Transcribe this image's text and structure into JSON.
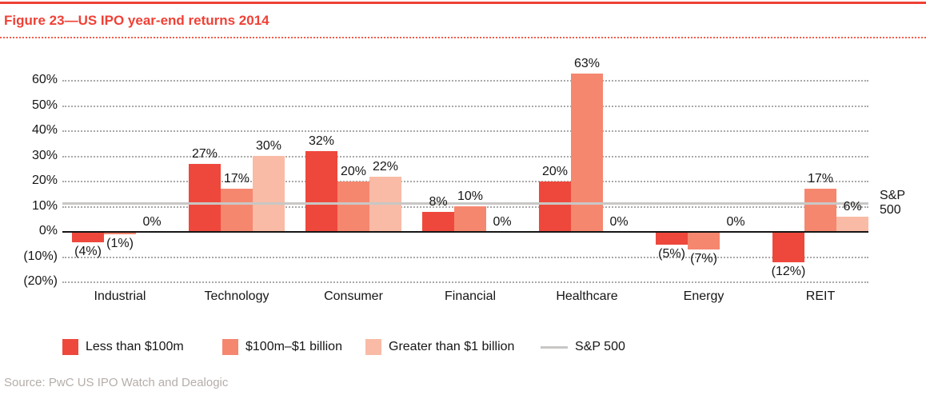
{
  "header": {
    "title": "Figure 23—US IPO year-end returns 2014"
  },
  "source_line": "Source: PwC US IPO Watch and Dealogic",
  "colors": {
    "accent_red": "#ef4136",
    "series_less_than_100m": "#ee483c",
    "series_100m_1billion": "#f5876f",
    "series_greater_1billion": "#f9bba6",
    "sp500_line": "#c8c7c5",
    "gridline": "#a9a9a9",
    "axis_text": "#161616",
    "source_text": "#b5aeaa"
  },
  "chart_data": {
    "type": "bar",
    "title": "US IPO year-end returns 2014",
    "categories": [
      "Industrial",
      "Technology",
      "Consumer",
      "Financial",
      "Healthcare",
      "Energy",
      "REIT"
    ],
    "series": [
      {
        "name": "Less than $100m",
        "color": "#ee483c",
        "values": [
          -4,
          27,
          32,
          8,
          20,
          -5,
          -12
        ],
        "labels": [
          "(4%)",
          "27%",
          "32%",
          "8%",
          "20%",
          "(5%)",
          "(12%)"
        ]
      },
      {
        "name": "$100m–$1 billion",
        "color": "#f5876f",
        "values": [
          -1,
          17,
          20,
          10,
          63,
          -7,
          17
        ],
        "labels": [
          "(1%)",
          "17%",
          "20%",
          "10%",
          "63%",
          "(7%)",
          "17%"
        ]
      },
      {
        "name": "Greater than $1 billion",
        "color": "#f9bba6",
        "values": [
          0,
          30,
          22,
          0,
          0,
          0,
          6
        ],
        "labels": [
          "0%",
          "30%",
          "22%",
          "0%",
          "0%",
          "0%",
          "6%"
        ]
      }
    ],
    "reference_line": {
      "name": "S&P 500",
      "value": 11.4,
      "color": "#c8c7c5",
      "side_label_lines": [
        "S&P",
        "500"
      ]
    },
    "y_ticks": [
      {
        "value": 60,
        "label": "60%"
      },
      {
        "value": 50,
        "label": "50%"
      },
      {
        "value": 40,
        "label": "40%"
      },
      {
        "value": 30,
        "label": "30%"
      },
      {
        "value": 20,
        "label": "20%"
      },
      {
        "value": 10,
        "label": "10%"
      },
      {
        "value": 0,
        "label": "0%"
      },
      {
        "value": -10,
        "label": "(10%)"
      },
      {
        "value": -20,
        "label": "(20%)"
      }
    ],
    "ylim": [
      -20,
      70
    ],
    "grid": "horizontal-dotted",
    "value_label_format": "negatives shown in parentheses",
    "legend_position": "bottom",
    "legend": [
      {
        "type": "swatch",
        "color": "#ee483c",
        "label": "Less than $100m"
      },
      {
        "type": "swatch",
        "color": "#f5876f",
        "label": "$100m–$1 billion"
      },
      {
        "type": "swatch",
        "color": "#f9bba6",
        "label": "Greater than $1 billion"
      },
      {
        "type": "line",
        "color": "#c8c7c5",
        "label": "S&P 500"
      }
    ]
  }
}
